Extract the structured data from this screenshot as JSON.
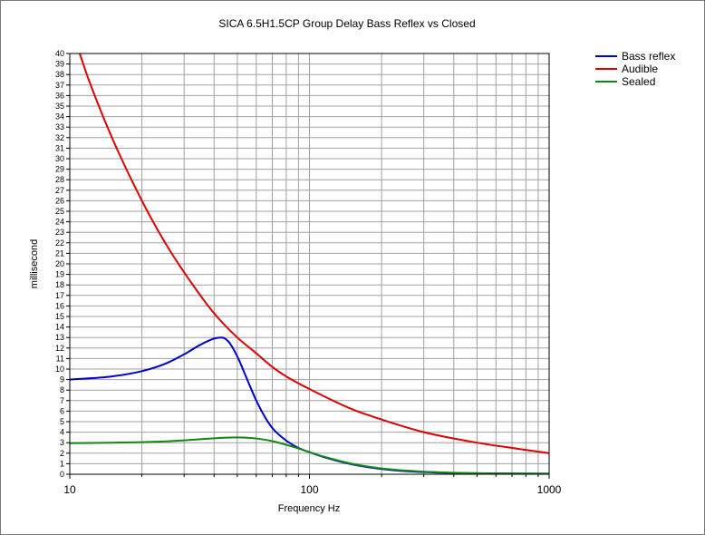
{
  "chart_data": {
    "type": "line",
    "title": "SICA 6.5H1.5CP Group Delay Bass Reflex vs Closed",
    "xlabel": "Frequency Hz",
    "ylabel": "millisecond",
    "x_scale": "log",
    "xlim": [
      10,
      1000
    ],
    "ylim": [
      0,
      40
    ],
    "x_tick_labels": [
      "10",
      "100",
      "1000"
    ],
    "y_tick_labels": [
      "0",
      "1",
      "2",
      "3",
      "4",
      "5",
      "6",
      "7",
      "8",
      "9",
      "10",
      "11",
      "12",
      "13",
      "14",
      "15",
      "16",
      "17",
      "18",
      "19",
      "20",
      "21",
      "22",
      "23",
      "24",
      "25",
      "26",
      "27",
      "28",
      "29",
      "30",
      "31",
      "32",
      "33",
      "34",
      "35",
      "36",
      "37",
      "38",
      "39",
      "40"
    ],
    "grid": true,
    "legend_position": "top-right",
    "series": [
      {
        "name": "Bass reflex",
        "color": "#0000cc",
        "x": [
          10,
          15,
          20,
          25,
          30,
          35,
          40,
          43,
          46,
          50,
          55,
          60,
          65,
          70,
          80,
          90,
          100,
          120,
          150,
          200,
          300,
          500,
          1000
        ],
        "y": [
          9.0,
          9.3,
          9.8,
          10.5,
          11.4,
          12.3,
          12.9,
          13.0,
          12.6,
          11.2,
          9.0,
          7.0,
          5.5,
          4.4,
          3.2,
          2.5,
          2.1,
          1.5,
          0.95,
          0.5,
          0.2,
          0.1,
          0.05
        ]
      },
      {
        "name": "Audible",
        "color": "#dd0000",
        "x": [
          11,
          12,
          15,
          20,
          25,
          30,
          40,
          50,
          60,
          70,
          80,
          100,
          150,
          200,
          300,
          500,
          700,
          1000
        ],
        "y": [
          40,
          37.5,
          32,
          26,
          22,
          19.2,
          15.3,
          13.0,
          11.5,
          10.2,
          9.3,
          8.1,
          6.2,
          5.2,
          4.0,
          3.0,
          2.5,
          2.0
        ]
      },
      {
        "name": "Sealed",
        "color": "#118811",
        "x": [
          10,
          15,
          20,
          25,
          30,
          35,
          40,
          45,
          50,
          55,
          60,
          70,
          80,
          90,
          100,
          120,
          150,
          200,
          300,
          500,
          1000
        ],
        "y": [
          2.95,
          3.0,
          3.05,
          3.12,
          3.22,
          3.33,
          3.42,
          3.48,
          3.5,
          3.47,
          3.4,
          3.15,
          2.8,
          2.45,
          2.1,
          1.55,
          1.0,
          0.55,
          0.25,
          0.1,
          0.05
        ]
      }
    ]
  }
}
